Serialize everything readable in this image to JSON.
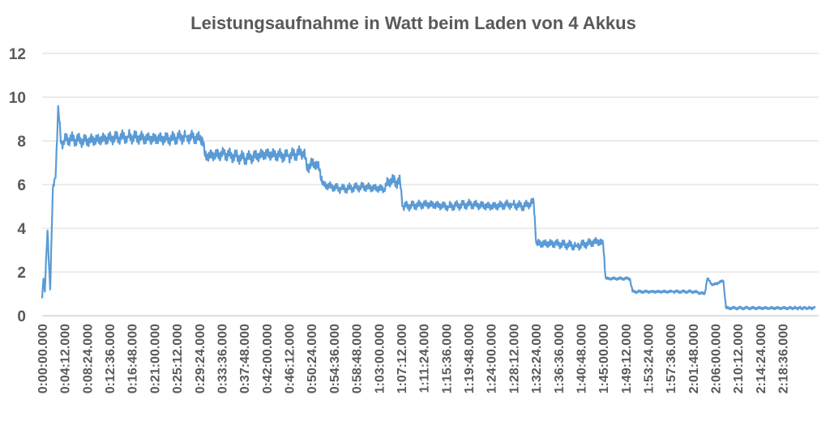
{
  "chart_data": {
    "type": "line",
    "title": "Leistungsaufnahme in Watt beim Laden von 4 Akkus",
    "xlabel": "",
    "ylabel": "",
    "ylim": [
      0,
      12
    ],
    "yticks": [
      "0",
      "2",
      "4",
      "6",
      "8",
      "10",
      "12"
    ],
    "xlim_seconds": [
      0,
      8720
    ],
    "xticks": [
      "0:00:00.000",
      "0:04:12.000",
      "0:08:24.000",
      "0:12:36.000",
      "0:16:48.000",
      "0:21:00.000",
      "0:25:12.000",
      "0:29:24.000",
      "0:33:36.000",
      "0:37:48.000",
      "0:42:00.000",
      "0:46:12.000",
      "0:50:24.000",
      "0:54:36.000",
      "0:58:48.000",
      "1:03:00.000",
      "1:07:12.000",
      "1:11:24.000",
      "1:15:36.000",
      "1:19:48.000",
      "1:24:00.000",
      "1:28:12.000",
      "1:32:24.000",
      "1:36:36.000",
      "1:40:48.000",
      "1:45:00.000",
      "1:49:12.000",
      "1:53:24.000",
      "1:57:36.000",
      "2:01:48.000",
      "2:06:00.000",
      "2:10:12.000",
      "2:14:24.000",
      "2:18:36.000"
    ],
    "grid": true,
    "legend": "none",
    "series": [
      {
        "color": "#5b9bd5",
        "x": [
          "0:00:00",
          "0:00:15",
          "0:00:30",
          "0:01:00",
          "0:01:30",
          "0:02:00",
          "0:02:30",
          "0:03:00",
          "0:03:30",
          "0:04:00",
          "0:05:00",
          "0:08:00",
          "0:12:00",
          "0:16:00",
          "0:20:00",
          "0:24:00",
          "0:27:00",
          "0:30:00",
          "0:30:30",
          "0:34:00",
          "0:38:00",
          "0:42:00",
          "0:46:00",
          "0:49:00",
          "0:49:30",
          "0:51:00",
          "0:52:00",
          "0:52:30",
          "0:56:00",
          "1:00:00",
          "1:04:00",
          "1:05:00",
          "1:07:00",
          "1:07:30",
          "1:12:00",
          "1:16:00",
          "1:20:00",
          "1:24:00",
          "1:28:00",
          "1:30:00",
          "1:32:00",
          "1:32:30",
          "1:36:00",
          "1:40:00",
          "1:44:00",
          "1:45:00",
          "1:45:30",
          "1:49:00",
          "1:50:00",
          "1:50:30",
          "1:54:00",
          "1:58:00",
          "2:02:00",
          "2:04:00",
          "2:04:30",
          "2:05:30",
          "2:06:30",
          "2:07:30",
          "2:08:00",
          "2:12:00",
          "2:16:00",
          "2:20:00",
          "2:24:40"
        ],
        "y": [
          0.8,
          1.7,
          1.1,
          3.9,
          1.2,
          5.8,
          6.3,
          9.6,
          7.9,
          8.0,
          8.1,
          8.0,
          8.1,
          8.2,
          8.1,
          8.1,
          8.2,
          8.1,
          7.3,
          7.4,
          7.2,
          7.4,
          7.3,
          7.5,
          6.8,
          7.0,
          6.7,
          6.0,
          5.8,
          5.9,
          5.8,
          6.2,
          6.1,
          5.0,
          5.1,
          5.0,
          5.1,
          5.0,
          5.1,
          5.0,
          5.2,
          3.3,
          3.3,
          3.2,
          3.4,
          3.3,
          1.7,
          1.7,
          1.7,
          1.1,
          1.1,
          1.1,
          1.1,
          1.0,
          1.7,
          1.4,
          1.5,
          1.6,
          0.35,
          0.35,
          0.35,
          0.35,
          0.35
        ]
      }
    ]
  }
}
